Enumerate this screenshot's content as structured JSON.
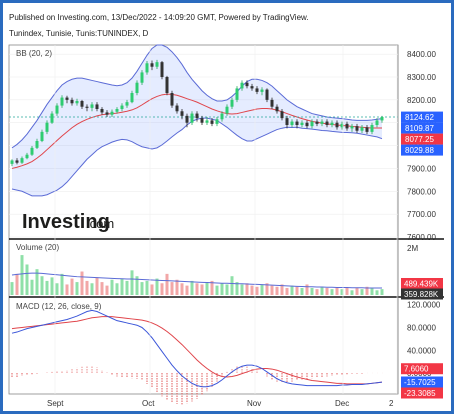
{
  "header": {
    "line1": "Published on Investing.com, 13/Dec/2022 - 14:09:20 GMT, Powered by TradingView.",
    "line2": "Tunindex, Tunisie, Tunis:TUNINDEX, D"
  },
  "watermark": {
    "brand": "Investing",
    "suffix": ".com"
  },
  "chart_data": [
    {
      "type": "candlestick",
      "indicator_label": "BB (20, 2)",
      "x_labels": [
        "Sept",
        "Oct",
        "Nov",
        "Dec",
        "2"
      ],
      "y_ticks": [
        8400,
        8300,
        8200,
        8100,
        8000,
        7900,
        7800,
        7700,
        7600
      ],
      "ylim": [
        7600,
        8440
      ],
      "badges": [
        {
          "value": "8124.62",
          "color": "#2962ff"
        },
        {
          "value": "8109.87",
          "color": "#2962ff"
        },
        {
          "value": "8077.25",
          "color": "#f23645"
        },
        {
          "value": "8029.88",
          "color": "#2962ff"
        }
      ],
      "candles": [
        [
          7920,
          7935,
          7910,
          7940
        ],
        [
          7935,
          7925,
          7918,
          7945
        ],
        [
          7925,
          7945,
          7920,
          7952
        ],
        [
          7945,
          7960,
          7940,
          7968
        ],
        [
          7960,
          7990,
          7955,
          7998
        ],
        [
          7990,
          8020,
          7985,
          8030
        ],
        [
          8020,
          8060,
          8015,
          8070
        ],
        [
          8060,
          8100,
          8050,
          8110
        ],
        [
          8100,
          8140,
          8095,
          8150
        ],
        [
          8140,
          8175,
          8130,
          8185
        ],
        [
          8175,
          8210,
          8165,
          8220
        ],
        [
          8210,
          8200,
          8185,
          8218
        ],
        [
          8200,
          8185,
          8175,
          8210
        ],
        [
          8185,
          8195,
          8175,
          8205
        ],
        [
          8195,
          8170,
          8160,
          8200
        ],
        [
          8170,
          8165,
          8150,
          8180
        ],
        [
          8165,
          8180,
          8150,
          8190
        ],
        [
          8180,
          8160,
          8150,
          8190
        ],
        [
          8160,
          8145,
          8135,
          8168
        ],
        [
          8145,
          8135,
          8125,
          8155
        ],
        [
          8135,
          8148,
          8125,
          8158
        ],
        [
          8148,
          8160,
          8140,
          8168
        ],
        [
          8160,
          8175,
          8150,
          8185
        ],
        [
          8175,
          8190,
          8165,
          8200
        ],
        [
          8190,
          8230,
          8185,
          8240
        ],
        [
          8230,
          8275,
          8220,
          8285
        ],
        [
          8275,
          8320,
          8265,
          8330
        ],
        [
          8320,
          8360,
          8310,
          8370
        ],
        [
          8360,
          8345,
          8330,
          8372
        ],
        [
          8345,
          8365,
          8335,
          8375
        ],
        [
          8365,
          8300,
          8290,
          8370
        ],
        [
          8300,
          8230,
          8220,
          8305
        ],
        [
          8230,
          8175,
          8165,
          8240
        ],
        [
          8175,
          8150,
          8140,
          8185
        ],
        [
          8150,
          8130,
          8115,
          8160
        ],
        [
          8130,
          8100,
          8080,
          8140
        ],
        [
          8100,
          8140,
          8090,
          8150
        ],
        [
          8140,
          8120,
          8105,
          8150
        ],
        [
          8120,
          8100,
          8090,
          8130
        ],
        [
          8100,
          8110,
          8090,
          8125
        ],
        [
          8110,
          8095,
          8085,
          8120
        ],
        [
          8095,
          8115,
          8085,
          8125
        ],
        [
          8115,
          8140,
          8105,
          8150
        ],
        [
          8140,
          8170,
          8130,
          8180
        ],
        [
          8170,
          8200,
          8160,
          8210
        ],
        [
          8200,
          8250,
          8190,
          8260
        ],
        [
          8250,
          8275,
          8240,
          8285
        ],
        [
          8275,
          8260,
          8250,
          8285
        ],
        [
          8260,
          8250,
          8240,
          8270
        ],
        [
          8250,
          8235,
          8225,
          8260
        ],
        [
          8235,
          8245,
          8220,
          8255
        ],
        [
          8245,
          8200,
          8190,
          8250
        ],
        [
          8200,
          8170,
          8160,
          8210
        ],
        [
          8170,
          8150,
          8140,
          8180
        ],
        [
          8150,
          8120,
          8110,
          8160
        ],
        [
          8120,
          8090,
          8075,
          8130
        ],
        [
          8090,
          8105,
          8080,
          8115
        ],
        [
          8105,
          8090,
          8075,
          8115
        ],
        [
          8090,
          8100,
          8080,
          8110
        ],
        [
          8100,
          8085,
          8075,
          8110
        ],
        [
          8085,
          8105,
          8075,
          8115
        ],
        [
          8105,
          8095,
          8085,
          8115
        ],
        [
          8095,
          8105,
          8085,
          8115
        ],
        [
          8105,
          8090,
          8080,
          8115
        ],
        [
          8090,
          8100,
          8080,
          8110
        ],
        [
          8100,
          8080,
          8070,
          8110
        ],
        [
          8080,
          8095,
          8070,
          8105
        ],
        [
          8095,
          8075,
          8065,
          8105
        ],
        [
          8075,
          8085,
          8060,
          8095
        ],
        [
          8085,
          8065,
          8055,
          8095
        ],
        [
          8065,
          8080,
          8055,
          8090
        ],
        [
          8080,
          8060,
          8050,
          8090
        ],
        [
          8060,
          8090,
          8050,
          8100
        ],
        [
          8090,
          8110,
          8080,
          8120
        ],
        [
          8110,
          8125,
          8100,
          8130
        ]
      ],
      "bb_upper": [
        7990,
        8005,
        8025,
        8050,
        8080,
        8110,
        8145,
        8180,
        8210,
        8240,
        8265,
        8280,
        8290,
        8295,
        8295,
        8290,
        8285,
        8280,
        8275,
        8270,
        8265,
        8262,
        8265,
        8275,
        8295,
        8325,
        8360,
        8395,
        8425,
        8440,
        8440,
        8430,
        8410,
        8385,
        8355,
        8320,
        8290,
        8265,
        8240,
        8220,
        8205,
        8195,
        8195,
        8200,
        8215,
        8235,
        8260,
        8280,
        8290,
        8290,
        8285,
        8275,
        8260,
        8240,
        8220,
        8200,
        8185,
        8170,
        8160,
        8150,
        8140,
        8135,
        8130,
        8125,
        8122,
        8120,
        8118,
        8115,
        8112,
        8110,
        8110,
        8110,
        8112,
        8115,
        8118
      ],
      "bb_mid": [
        7900,
        7905,
        7912,
        7920,
        7930,
        7945,
        7962,
        7982,
        8002,
        8022,
        8042,
        8060,
        8078,
        8093,
        8105,
        8115,
        8123,
        8130,
        8135,
        8138,
        8140,
        8142,
        8146,
        8150,
        8156,
        8165,
        8178,
        8192,
        8205,
        8215,
        8222,
        8225,
        8224,
        8220,
        8213,
        8205,
        8198,
        8190,
        8180,
        8170,
        8160,
        8152,
        8145,
        8140,
        8138,
        8140,
        8145,
        8150,
        8155,
        8160,
        8162,
        8162,
        8160,
        8155,
        8148,
        8140,
        8132,
        8125,
        8118,
        8112,
        8106,
        8102,
        8098,
        8095,
        8092,
        8090,
        8088,
        8086,
        8084,
        8082,
        8080,
        8078,
        8077,
        8077,
        8077
      ],
      "bb_lower": [
        7810,
        7805,
        7800,
        7790,
        7780,
        7780,
        7780,
        7785,
        7795,
        7805,
        7820,
        7840,
        7865,
        7890,
        7915,
        7940,
        7960,
        7980,
        7995,
        8005,
        8015,
        8022,
        8027,
        8025,
        8017,
        8005,
        7995,
        7990,
        7985,
        7990,
        8003,
        8020,
        8038,
        8055,
        8070,
        8090,
        8106,
        8115,
        8120,
        8120,
        8115,
        8110,
        8095,
        8080,
        8062,
        8045,
        8030,
        8020,
        8020,
        8030,
        8040,
        8050,
        8060,
        8070,
        8076,
        8080,
        8079,
        8080,
        8076,
        8074,
        8072,
        8069,
        8066,
        8065,
        8062,
        8060,
        8058,
        8057,
        8056,
        8054,
        8050,
        8046,
        8042,
        8038,
        8030
      ]
    },
    {
      "type": "bar",
      "indicator_label": "Volume (20)",
      "y_ticks": [
        "2M"
      ],
      "badges": [
        {
          "value": "489.439K",
          "color": "#f23645"
        },
        {
          "value": "359.828K",
          "color": "#333333"
        }
      ],
      "values": [
        0.55,
        0.9,
        1.7,
        1.3,
        0.65,
        1.1,
        0.8,
        0.6,
        0.75,
        0.5,
        0.9,
        0.45,
        0.7,
        0.55,
        1.0,
        0.6,
        0.5,
        0.75,
        0.55,
        0.4,
        0.65,
        0.5,
        0.7,
        0.6,
        1.05,
        0.8,
        0.55,
        0.6,
        0.45,
        0.7,
        0.5,
        0.9,
        0.55,
        0.65,
        0.5,
        0.4,
        0.6,
        0.5,
        0.45,
        0.55,
        0.6,
        0.4,
        0.5,
        0.45,
        0.8,
        0.55,
        0.45,
        0.5,
        0.4,
        0.35,
        0.45,
        0.5,
        0.4,
        0.35,
        0.45,
        0.3,
        0.4,
        0.35,
        0.3,
        0.45,
        0.3,
        0.25,
        0.35,
        0.3,
        0.25,
        0.3,
        0.25,
        0.3,
        0.2,
        0.3,
        0.25,
        0.35,
        0.3,
        0.2,
        0.25
      ],
      "ma": [
        0.85,
        0.88,
        0.9,
        0.92,
        0.93,
        0.93,
        0.92,
        0.9,
        0.88,
        0.86,
        0.84,
        0.82,
        0.8,
        0.78,
        0.77,
        0.76,
        0.75,
        0.74,
        0.73,
        0.72,
        0.71,
        0.7,
        0.69,
        0.68,
        0.68,
        0.67,
        0.66,
        0.65,
        0.64,
        0.63,
        0.62,
        0.61,
        0.6,
        0.59,
        0.58,
        0.57,
        0.56,
        0.55,
        0.54,
        0.53,
        0.52,
        0.51,
        0.5,
        0.5,
        0.49,
        0.48,
        0.48,
        0.47,
        0.46,
        0.45,
        0.44,
        0.43,
        0.42,
        0.41,
        0.4,
        0.39,
        0.38,
        0.37,
        0.36,
        0.35,
        0.35,
        0.34,
        0.34,
        0.33,
        0.33,
        0.32,
        0.32,
        0.32,
        0.31,
        0.31,
        0.31,
        0.3,
        0.3,
        0.3,
        0.3
      ],
      "ylim": [
        0,
        2.3
      ]
    },
    {
      "type": "line",
      "indicator_label": "MACD (12, 26, close, 9)",
      "y_ticks": [
        120,
        80,
        40,
        0
      ],
      "ylim": [
        -35,
        130
      ],
      "badges": [
        {
          "value": "7.6060",
          "color": "#f23645"
        },
        {
          "value": "-15.7025",
          "color": "#2962ff"
        },
        {
          "value": "-23.3085",
          "color": "#f23645"
        }
      ],
      "macd": [
        70,
        72,
        75,
        78,
        80,
        82,
        84,
        86,
        88,
        90,
        92,
        94,
        97,
        100,
        104,
        108,
        110,
        108,
        104,
        100,
        96,
        92,
        90,
        88,
        86,
        84,
        80,
        72,
        62,
        50,
        38,
        26,
        14,
        4,
        -5,
        -12,
        -18,
        -22,
        -24,
        -24,
        -22,
        -18,
        -12,
        -5,
        2,
        8,
        12,
        14,
        14,
        12,
        8,
        2,
        -4,
        -10,
        -14,
        -17,
        -19,
        -20,
        -21,
        -22,
        -22,
        -22,
        -22,
        -22,
        -22,
        -22,
        -21,
        -21,
        -20,
        -20,
        -20,
        -19,
        -18,
        -17,
        -16
      ],
      "signal": [
        78,
        79,
        80,
        81,
        82,
        83,
        84,
        85,
        86,
        87,
        88,
        89,
        90,
        91,
        93,
        95,
        97,
        98,
        99,
        99,
        99,
        98,
        97,
        96,
        95,
        94,
        93,
        91,
        88,
        84,
        79,
        73,
        66,
        58,
        50,
        41,
        32,
        23,
        15,
        8,
        2,
        -3,
        -6,
        -7,
        -6,
        -4,
        -1,
        2,
        5,
        7,
        8,
        8,
        7,
        5,
        2,
        -1,
        -4,
        -7,
        -9,
        -11,
        -13,
        -14,
        -15,
        -16,
        -17,
        -18,
        -18,
        -19,
        -19,
        -19,
        -19,
        -19,
        -18,
        -17,
        -16
      ],
      "histogram": [
        -8,
        -7,
        -5,
        -3,
        -2,
        -1,
        0,
        1,
        2,
        3,
        4,
        5,
        7,
        9,
        11,
        13,
        13,
        10,
        5,
        1,
        -3,
        -6,
        -7,
        -8,
        -9,
        -10,
        -13,
        -19,
        -26,
        -34,
        -41,
        -47,
        -52,
        -54,
        -55,
        -53,
        -50,
        -45,
        -39,
        -32,
        -24,
        -15,
        -6,
        2,
        8,
        12,
        13,
        12,
        9,
        5,
        0,
        -6,
        -11,
        -15,
        -16,
        -16,
        -15,
        -13,
        -12,
        -11,
        -9,
        -8,
        -7,
        -6,
        -5,
        -4,
        -3,
        -2,
        -1,
        -1,
        -1,
        0,
        0,
        0,
        0
      ]
    }
  ]
}
